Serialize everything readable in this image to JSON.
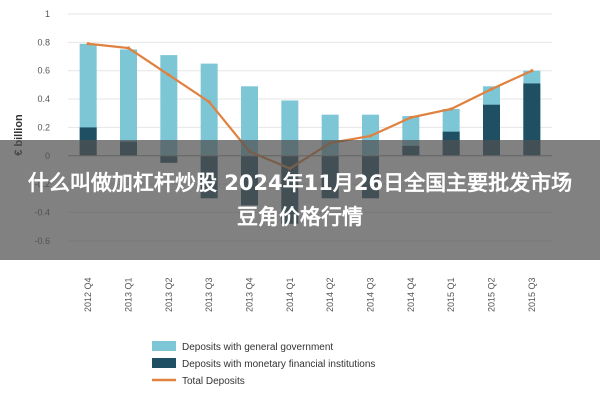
{
  "overlay": {
    "title": "什么叫做加杠杆炒股 2024年11月26日全国主要批发市场豆角价格行情"
  },
  "colors": {
    "general_government": "#7cc6d6",
    "monetary_institutions": "#1e4f63",
    "total_line": "#e0813f",
    "overlay": "#505050"
  },
  "chart_data": {
    "type": "bar",
    "ylabel": "€ billion",
    "ylim": [
      -0.7,
      1.0
    ],
    "yticks": [
      "1",
      "0.8",
      "0.6",
      "0.4",
      "0.2",
      "0",
      "-0.2",
      "-0.4",
      "-0.6"
    ],
    "categories": [
      "2012 Q4",
      "2013 Q1",
      "2013 Q2",
      "2013 Q3",
      "2013 Q4",
      "2014 Q1",
      "2014 Q2",
      "2014 Q3",
      "2014 Q4",
      "2015 Q1",
      "2015 Q2",
      "2015 Q3"
    ],
    "series": [
      {
        "name": "Deposits with general government",
        "kind": "bar",
        "color": "#7cc6d6",
        "values": [
          0.79,
          0.75,
          0.71,
          0.65,
          0.49,
          0.39,
          0.29,
          0.29,
          0.28,
          0.33,
          0.49,
          0.6
        ]
      },
      {
        "name": "Deposits with monetary financial institutions",
        "kind": "bar",
        "color": "#1e4f63",
        "values": [
          0.2,
          0.1,
          -0.05,
          -0.3,
          -0.35,
          -0.48,
          -0.3,
          -0.3,
          0.07,
          0.17,
          0.36,
          0.51
        ]
      },
      {
        "name": "Total Deposits",
        "kind": "line",
        "color": "#e0813f",
        "values": [
          0.79,
          0.76,
          0.57,
          0.38,
          0.03,
          -0.09,
          0.09,
          0.14,
          0.27,
          0.33,
          0.47,
          0.6
        ]
      }
    ],
    "legend_position": "bottom-left",
    "grid": true
  }
}
